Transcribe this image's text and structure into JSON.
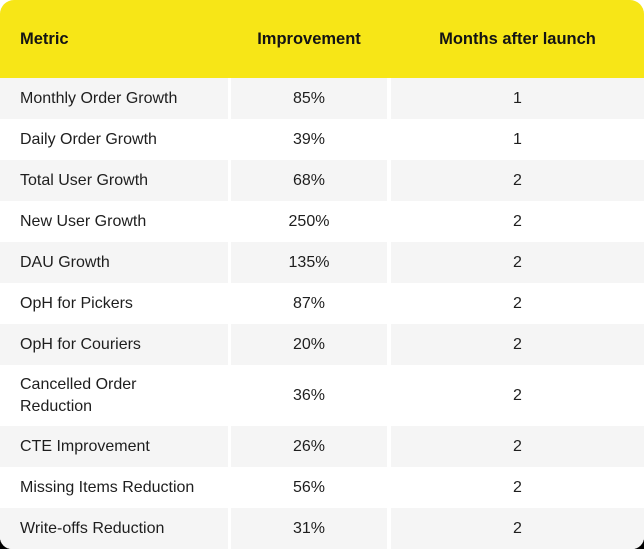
{
  "theme": {
    "header_bg": "#f7e617",
    "alt_row_bg": "#f5f5f5",
    "row_bg": "#ffffff",
    "body_text_color": "#1e1e1e",
    "header_text_color": "#141414",
    "outside_bottom_corner_color": "#000000"
  },
  "chart_data": {
    "type": "table",
    "title": "",
    "columns": [
      "Metric",
      "Improvement",
      "Months after launch"
    ],
    "rows": [
      [
        "Monthly Order Growth",
        "85%",
        "1"
      ],
      [
        "Daily Order Growth",
        "39%",
        "1"
      ],
      [
        "Total User Growth",
        "68%",
        "2"
      ],
      [
        "New User Growth",
        "250%",
        "2"
      ],
      [
        "DAU Growth",
        "135%",
        "2"
      ],
      [
        "OpH for Pickers",
        "87%",
        "2"
      ],
      [
        "OpH for Couriers",
        "20%",
        "2"
      ],
      [
        "Cancelled Order Reduction",
        "36%",
        "2"
      ],
      [
        "CTE Improvement",
        "26%",
        "2"
      ],
      [
        "Missing Items Reduction",
        "56%",
        "2"
      ],
      [
        "Write-offs Reduction",
        "31%",
        "2"
      ]
    ],
    "layout_hints": {
      "alternating_rows": "odd rows (1st, 3rd, ...) shaded gray",
      "column_alignment": [
        "left",
        "center",
        "center"
      ],
      "header_style": "bold black text on yellow band with rounded top corners"
    }
  }
}
